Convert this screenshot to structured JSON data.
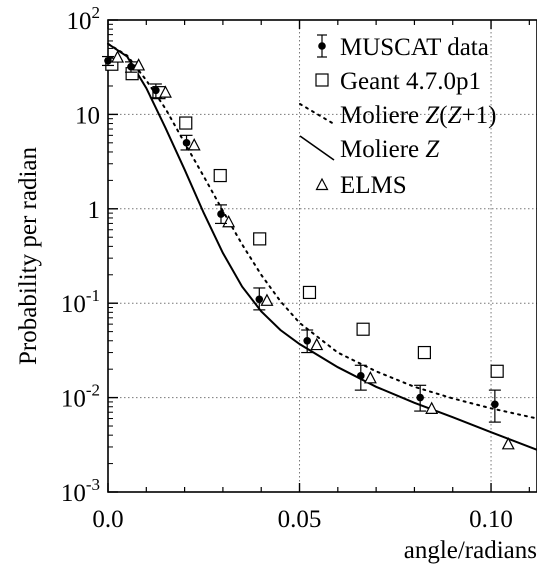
{
  "chart_data": {
    "type": "scatter",
    "xlabel": "angle/radians",
    "ylabel": "Probability per radian",
    "xlim": [
      0,
      0.112
    ],
    "ylim_log10": [
      -3,
      2
    ],
    "log_y": true,
    "grid": "dotted",
    "legend_position": "top-right",
    "x_ticks": [
      {
        "value": 0.0,
        "label": "0.0"
      },
      {
        "value": 0.05,
        "label": "0.05"
      },
      {
        "value": 0.1,
        "label": "0.10"
      }
    ],
    "y_ticks": [
      {
        "exp": 2,
        "base": "10",
        "sup": "2",
        "label": ""
      },
      {
        "exp": 1,
        "base": "",
        "sup": "",
        "label": "10"
      },
      {
        "exp": 0,
        "base": "",
        "sup": "",
        "label": "1"
      },
      {
        "exp": -1,
        "base": "10",
        "sup": "-1",
        "label": ""
      },
      {
        "exp": -2,
        "base": "10",
        "sup": "-2",
        "label": ""
      },
      {
        "exp": -3,
        "base": "10",
        "sup": "-3",
        "label": ""
      }
    ],
    "series": [
      {
        "name": "MUSCAT data",
        "style": "filled-circle-errorbar",
        "x": [
          0.0,
          0.006,
          0.0125,
          0.0205,
          0.0295,
          0.0395,
          0.052,
          0.066,
          0.0815,
          0.101
        ],
        "y": [
          37,
          32,
          18,
          5,
          0.88,
          0.11,
          0.04,
          0.017,
          0.01,
          0.0085
        ],
        "y_low": [
          33,
          28,
          15,
          4.2,
          0.7,
          0.085,
          0.03,
          0.012,
          0.0072,
          0.0055
        ],
        "y_high": [
          41,
          36,
          21,
          6,
          1.1,
          0.145,
          0.052,
          0.022,
          0.0135,
          0.012
        ]
      },
      {
        "name": "Geant 4.7.0p1",
        "style": "open-square",
        "x": [
          0.001,
          0.0063,
          0.0133,
          0.0203,
          0.0293,
          0.0396,
          0.0526,
          0.0666,
          0.0826,
          0.1016
        ],
        "y": [
          34,
          27,
          17,
          8.1,
          2.25,
          0.48,
          0.13,
          0.053,
          0.03,
          0.019
        ]
      },
      {
        "name": "Moliere Z(Z+1)",
        "name_parts": [
          "Moliere ",
          "Z",
          "(",
          "Z",
          "+1)"
        ],
        "style": "dotted-line",
        "x": [
          0.0,
          0.005,
          0.01,
          0.015,
          0.02,
          0.025,
          0.03,
          0.035,
          0.04,
          0.045,
          0.05,
          0.06,
          0.07,
          0.08,
          0.09,
          0.1,
          0.112
        ],
        "y": [
          56,
          42,
          23,
          11.5,
          5,
          2.2,
          0.95,
          0.42,
          0.2,
          0.105,
          0.062,
          0.03,
          0.019,
          0.013,
          0.0098,
          0.0077,
          0.006
        ]
      },
      {
        "name": "Moliere Z",
        "name_parts": [
          "Moliere ",
          "Z"
        ],
        "style": "solid-line",
        "x": [
          0.0,
          0.005,
          0.01,
          0.015,
          0.02,
          0.025,
          0.03,
          0.035,
          0.04,
          0.045,
          0.05,
          0.06,
          0.07,
          0.08,
          0.09,
          0.1,
          0.112
        ],
        "y": [
          56,
          41,
          19,
          7.2,
          2.6,
          0.9,
          0.34,
          0.15,
          0.082,
          0.052,
          0.037,
          0.021,
          0.013,
          0.0088,
          0.0062,
          0.0043,
          0.0028
        ]
      },
      {
        "name": "ELMS",
        "style": "open-triangle",
        "x": [
          0.0025,
          0.008,
          0.015,
          0.0225,
          0.0315,
          0.0415,
          0.0545,
          0.0685,
          0.0845,
          0.1045
        ],
        "y": [
          40,
          33,
          17,
          4.7,
          0.72,
          0.106,
          0.036,
          0.016,
          0.0076,
          0.0032
        ]
      }
    ]
  }
}
